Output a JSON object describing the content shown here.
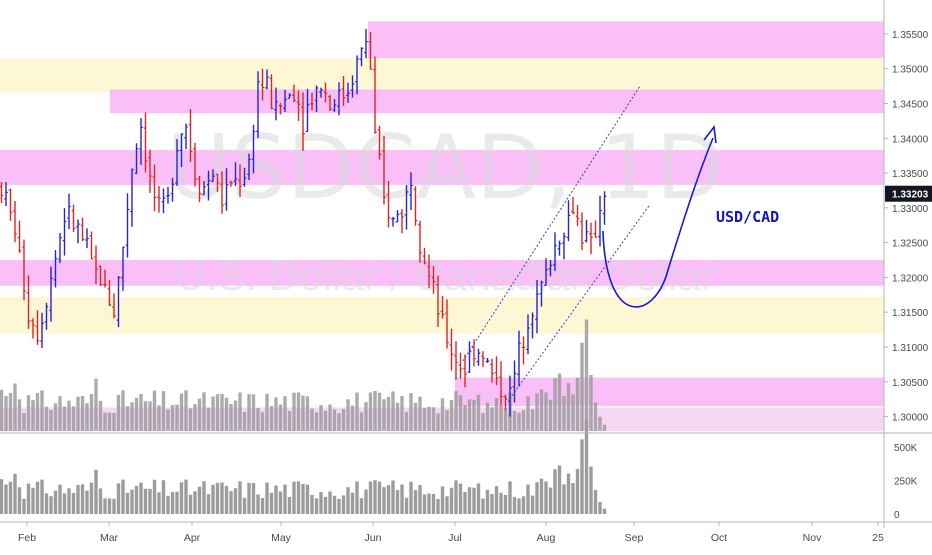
{
  "chart_data": {
    "type": "candlestick",
    "symbol": "USDCAD, 1D",
    "watermark_title": "USDCAD, 1D",
    "watermark_subtitle": "U.S. Dollar / Canadian Dollar",
    "annotation": "USD/CAD",
    "last_price": "1.33203",
    "price_axis": {
      "range": [
        1.2985,
        1.357
      ],
      "ticks": [
        "1.35500",
        "1.35000",
        "1.34500",
        "1.34000",
        "1.33500",
        "1.33000",
        "1.32500",
        "1.32000",
        "1.31500",
        "1.31000",
        "1.30500",
        "1.30000"
      ]
    },
    "volume_axis": {
      "range": [
        0,
        560000
      ],
      "ticks": [
        "500K",
        "250K",
        "0"
      ]
    },
    "time_axis": {
      "labels": [
        "Feb",
        "Mar",
        "Apr",
        "May",
        "Jun",
        "Jul",
        "Aug",
        "Sep",
        "Oct",
        "Nov",
        "25"
      ]
    },
    "zones": [
      {
        "kind": "supply",
        "color": "#f8b4f5",
        "top": 1.3568,
        "bottom": 1.3515
      },
      {
        "kind": "neutral",
        "color": "#fdf6cf",
        "top": 1.3515,
        "bottom": 1.3466
      },
      {
        "kind": "supply",
        "color": "#f8b4f5",
        "top": 1.347,
        "bottom": 1.3436
      },
      {
        "kind": "supply",
        "color": "#f8b4f5",
        "top": 1.3383,
        "bottom": 1.3333
      },
      {
        "kind": "supply",
        "color": "#f8b4f5",
        "top": 1.3225,
        "bottom": 1.3188
      },
      {
        "kind": "neutral",
        "color": "#fdf6cf",
        "top": 1.3172,
        "bottom": 1.3119
      },
      {
        "kind": "supply",
        "color": "#f8b4f5",
        "top": 1.3056,
        "bottom": 1.3015
      }
    ],
    "colors": {
      "up": "#2424d8",
      "down": "#e02424",
      "volume": "#9c9c9c",
      "zone_supply": "#f8b4f5",
      "zone_neutral": "#fdf6cf",
      "projection": "#1a1ad6",
      "channel": "#3a3ae0",
      "price_label_bg": "#131722"
    },
    "series": []
  }
}
